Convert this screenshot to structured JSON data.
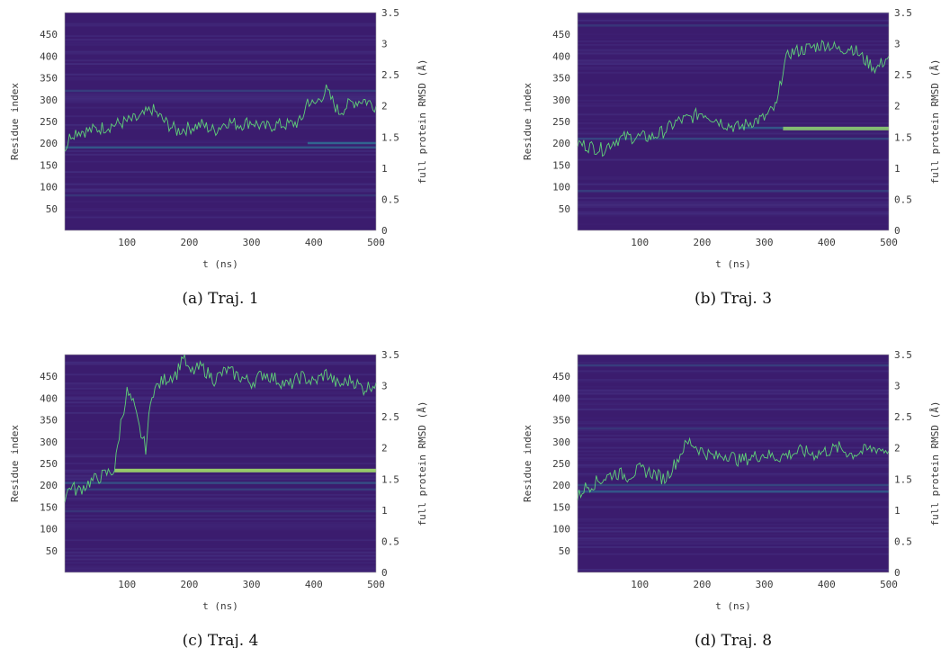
{
  "colors": {
    "heatmap_background": "#3b1c6e",
    "stripe_light": "#4a3b8a",
    "stripe_teal": "#2e7d9a",
    "stripe_bright": "#b8e35a",
    "rmsd_line": "#5fd078"
  },
  "chart_data": [
    {
      "type": "heatmap",
      "caption": "(a) Traj. 1",
      "xlabel": "t (ns)",
      "ylabel": "Residue index",
      "y2label": "full protein RMSD (Å)",
      "xlim": [
        0,
        500
      ],
      "ylim": [
        0,
        500
      ],
      "y2lim": [
        0,
        3.5
      ],
      "xticks": [
        100,
        200,
        300,
        400,
        500
      ],
      "yticks": [
        50,
        100,
        150,
        200,
        250,
        300,
        350,
        400,
        450
      ],
      "y2ticks": [
        0,
        0.5,
        1,
        1.5,
        2,
        2.5,
        3,
        3.5
      ],
      "rmsd_series": {
        "t": [
          0,
          10,
          20,
          40,
          60,
          80,
          100,
          120,
          140,
          160,
          180,
          200,
          220,
          240,
          260,
          280,
          300,
          320,
          340,
          360,
          380,
          390,
          400,
          420,
          440,
          460,
          480,
          500
        ],
        "rmsd": [
          1.3,
          1.55,
          1.6,
          1.6,
          1.65,
          1.7,
          1.75,
          1.8,
          1.95,
          1.75,
          1.6,
          1.65,
          1.7,
          1.6,
          1.75,
          1.7,
          1.75,
          1.65,
          1.7,
          1.7,
          1.75,
          2.1,
          2.0,
          2.25,
          1.9,
          2.05,
          2.1,
          2.0
        ]
      },
      "stripes": [
        {
          "residue": 190,
          "t_start": 0,
          "t_end": 500,
          "intensity": 0.35
        },
        {
          "residue": 200,
          "t_start": 390,
          "t_end": 500,
          "intensity": 0.45
        },
        {
          "residue": 320,
          "t_start": 0,
          "t_end": 500,
          "intensity": 0.2
        },
        {
          "residue": 80,
          "t_start": 0,
          "t_end": 500,
          "intensity": 0.15
        }
      ]
    },
    {
      "type": "heatmap",
      "caption": "(b) Traj. 3",
      "xlabel": "t (ns)",
      "ylabel": "Residue index",
      "y2label": "full protein RMSD (Å)",
      "xlim": [
        0,
        500
      ],
      "ylim": [
        0,
        500
      ],
      "y2lim": [
        0,
        3.5
      ],
      "xticks": [
        100,
        200,
        300,
        400,
        500
      ],
      "yticks": [
        50,
        100,
        150,
        200,
        250,
        300,
        350,
        400,
        450
      ],
      "y2ticks": [
        0,
        0.5,
        1,
        1.5,
        2,
        2.5,
        3,
        3.5
      ],
      "rmsd_series": {
        "t": [
          0,
          20,
          40,
          60,
          80,
          100,
          120,
          140,
          160,
          180,
          200,
          220,
          240,
          260,
          280,
          300,
          320,
          330,
          340,
          360,
          380,
          400,
          420,
          440,
          460,
          480,
          500
        ],
        "rmsd": [
          1.4,
          1.35,
          1.3,
          1.45,
          1.5,
          1.5,
          1.5,
          1.6,
          1.75,
          1.8,
          1.9,
          1.8,
          1.7,
          1.65,
          1.75,
          1.8,
          2.0,
          2.6,
          2.85,
          2.9,
          2.95,
          3.0,
          2.9,
          2.95,
          2.75,
          2.6,
          2.8
        ]
      },
      "stripes": [
        {
          "residue": 235,
          "t_start": 330,
          "t_end": 500,
          "intensity": 0.85
        },
        {
          "residue": 235,
          "t_start": 260,
          "t_end": 330,
          "intensity": 0.35
        },
        {
          "residue": 210,
          "t_start": 0,
          "t_end": 500,
          "intensity": 0.25
        },
        {
          "residue": 90,
          "t_start": 0,
          "t_end": 500,
          "intensity": 0.2
        },
        {
          "residue": 470,
          "t_start": 0,
          "t_end": 500,
          "intensity": 0.15
        }
      ]
    },
    {
      "type": "heatmap",
      "caption": "(c) Traj. 4",
      "xlabel": "t (ns)",
      "ylabel": "Residue index",
      "y2label": "full protein RMSD (Å)",
      "xlim": [
        0,
        500
      ],
      "ylim": [
        0,
        500
      ],
      "y2lim": [
        0,
        3.5
      ],
      "xticks": [
        100,
        200,
        300,
        400,
        500
      ],
      "yticks": [
        50,
        100,
        150,
        200,
        250,
        300,
        350,
        400,
        450
      ],
      "y2ticks": [
        0,
        0.5,
        1,
        1.5,
        2,
        2.5,
        3,
        3.5
      ],
      "rmsd_series": {
        "t": [
          0,
          10,
          20,
          40,
          60,
          70,
          80,
          90,
          100,
          110,
          120,
          130,
          140,
          160,
          180,
          190,
          200,
          220,
          240,
          260,
          280,
          300,
          320,
          340,
          360,
          380,
          400,
          420,
          440,
          460,
          480,
          500
        ],
        "rmsd": [
          1.2,
          1.4,
          1.3,
          1.45,
          1.55,
          1.6,
          1.65,
          2.4,
          2.9,
          2.7,
          2.3,
          2.0,
          2.9,
          3.1,
          3.2,
          3.5,
          3.2,
          3.3,
          3.1,
          3.25,
          3.15,
          3.05,
          3.2,
          3.1,
          3.0,
          3.15,
          3.05,
          3.2,
          3.0,
          3.1,
          2.95,
          3.05
        ]
      },
      "stripes": [
        {
          "residue": 235,
          "t_start": 80,
          "t_end": 500,
          "intensity": 0.9
        },
        {
          "residue": 205,
          "t_start": 0,
          "t_end": 500,
          "intensity": 0.3
        },
        {
          "residue": 190,
          "t_start": 0,
          "t_end": 500,
          "intensity": 0.2
        },
        {
          "residue": 140,
          "t_start": 0,
          "t_end": 500,
          "intensity": 0.15
        }
      ]
    },
    {
      "type": "heatmap",
      "caption": "(d) Traj. 8",
      "xlabel": "t (ns)",
      "ylabel": "Residue index",
      "y2label": "full protein RMSD (Å)",
      "xlim": [
        0,
        500
      ],
      "ylim": [
        0,
        500
      ],
      "y2lim": [
        0,
        3.5
      ],
      "xticks": [
        100,
        200,
        300,
        400,
        500
      ],
      "yticks": [
        50,
        100,
        150,
        200,
        250,
        300,
        350,
        400,
        450
      ],
      "y2ticks": [
        0,
        0.5,
        1,
        1.5,
        2,
        2.5,
        3,
        3.5
      ],
      "rmsd_series": {
        "t": [
          0,
          10,
          20,
          40,
          60,
          80,
          100,
          120,
          140,
          160,
          170,
          180,
          200,
          220,
          240,
          260,
          280,
          300,
          320,
          340,
          360,
          380,
          400,
          420,
          440,
          460,
          480,
          500
        ],
        "rmsd": [
          1.2,
          1.35,
          1.4,
          1.5,
          1.6,
          1.55,
          1.65,
          1.6,
          1.5,
          1.8,
          2.0,
          2.1,
          1.95,
          1.85,
          1.9,
          1.8,
          1.85,
          1.9,
          1.85,
          1.9,
          1.95,
          1.9,
          1.95,
          2.0,
          1.9,
          1.95,
          2.0,
          1.95
        ]
      },
      "stripes": [
        {
          "residue": 185,
          "t_start": 0,
          "t_end": 500,
          "intensity": 0.35
        },
        {
          "residue": 200,
          "t_start": 0,
          "t_end": 500,
          "intensity": 0.25
        },
        {
          "residue": 475,
          "t_start": 0,
          "t_end": 500,
          "intensity": 0.2
        },
        {
          "residue": 330,
          "t_start": 0,
          "t_end": 500,
          "intensity": 0.15
        }
      ]
    }
  ]
}
